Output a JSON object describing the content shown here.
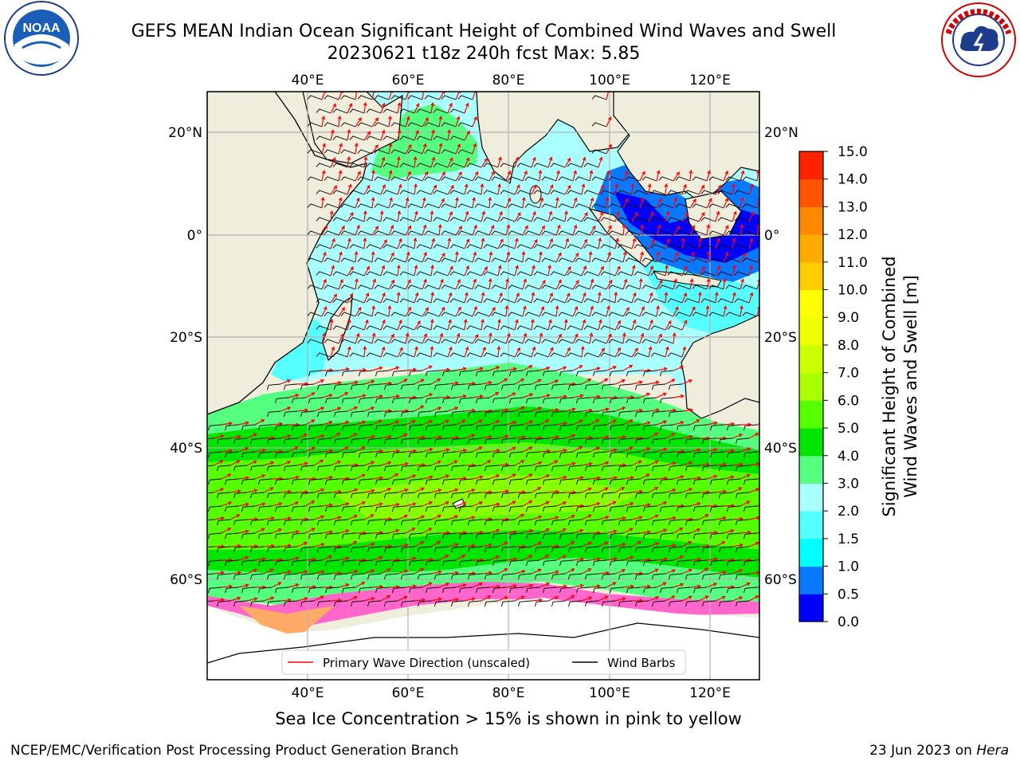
{
  "header": {
    "title_line1": "GEFS MEAN Indian Ocean Significant Height of Combined Wind Waves and Swell",
    "title_line2": "20230621 t18z 240h fcst   Max: 5.85",
    "logo_left": "noaa-logo",
    "logo_right": "national-weather-service-logo",
    "logo_left_text": "NOAA",
    "logo_right_text": "NATIONAL WEATHER SERVICE"
  },
  "map": {
    "lon_ticks": [
      "40°E",
      "60°E",
      "80°E",
      "100°E",
      "120°E"
    ],
    "lat_ticks_left": [
      "20°N",
      "0°",
      "20°S",
      "40°S",
      "60°S"
    ],
    "lat_ticks_right": [
      "20°N",
      "0°",
      "20°S",
      "40°S",
      "60°S"
    ],
    "legend": {
      "primary_wave": "Primary Wave Direction (unscaled)",
      "wind_barbs": "Wind Barbs"
    },
    "colors": {
      "land": "#efeedd",
      "ice_free": "#ffffff",
      "arrow": "#ff0000",
      "barb": "#000000"
    }
  },
  "colorbar": {
    "label_line1": "Significant Height of Combined",
    "label_line2": "Wind Waves and Swell [m]",
    "levels": [
      "0.0",
      "0.5",
      "1.0",
      "1.5",
      "2.0",
      "3.0",
      "4.0",
      "5.0",
      "6.0",
      "7.0",
      "8.0",
      "9.0",
      "10.0",
      "11.0",
      "12.0",
      "13.0",
      "14.0",
      "15.0"
    ],
    "colors": [
      "#0000ff",
      "#0a78ff",
      "#00ffff",
      "#55ffff",
      "#aaffff",
      "#55ff80",
      "#00e600",
      "#55ff00",
      "#aaff00",
      "#ccff00",
      "#eeff00",
      "#ffff00",
      "#ffcc00",
      "#ffaa00",
      "#ff8800",
      "#ff5500",
      "#ff2200"
    ]
  },
  "note": "Sea Ice Concentration > 15% is shown in pink to yellow",
  "footer": {
    "left": "NCEP/EMC/Verification Post Processing Product Generation Branch",
    "right_date": "23 Jun 2023 on ",
    "right_host": "Hera"
  }
}
